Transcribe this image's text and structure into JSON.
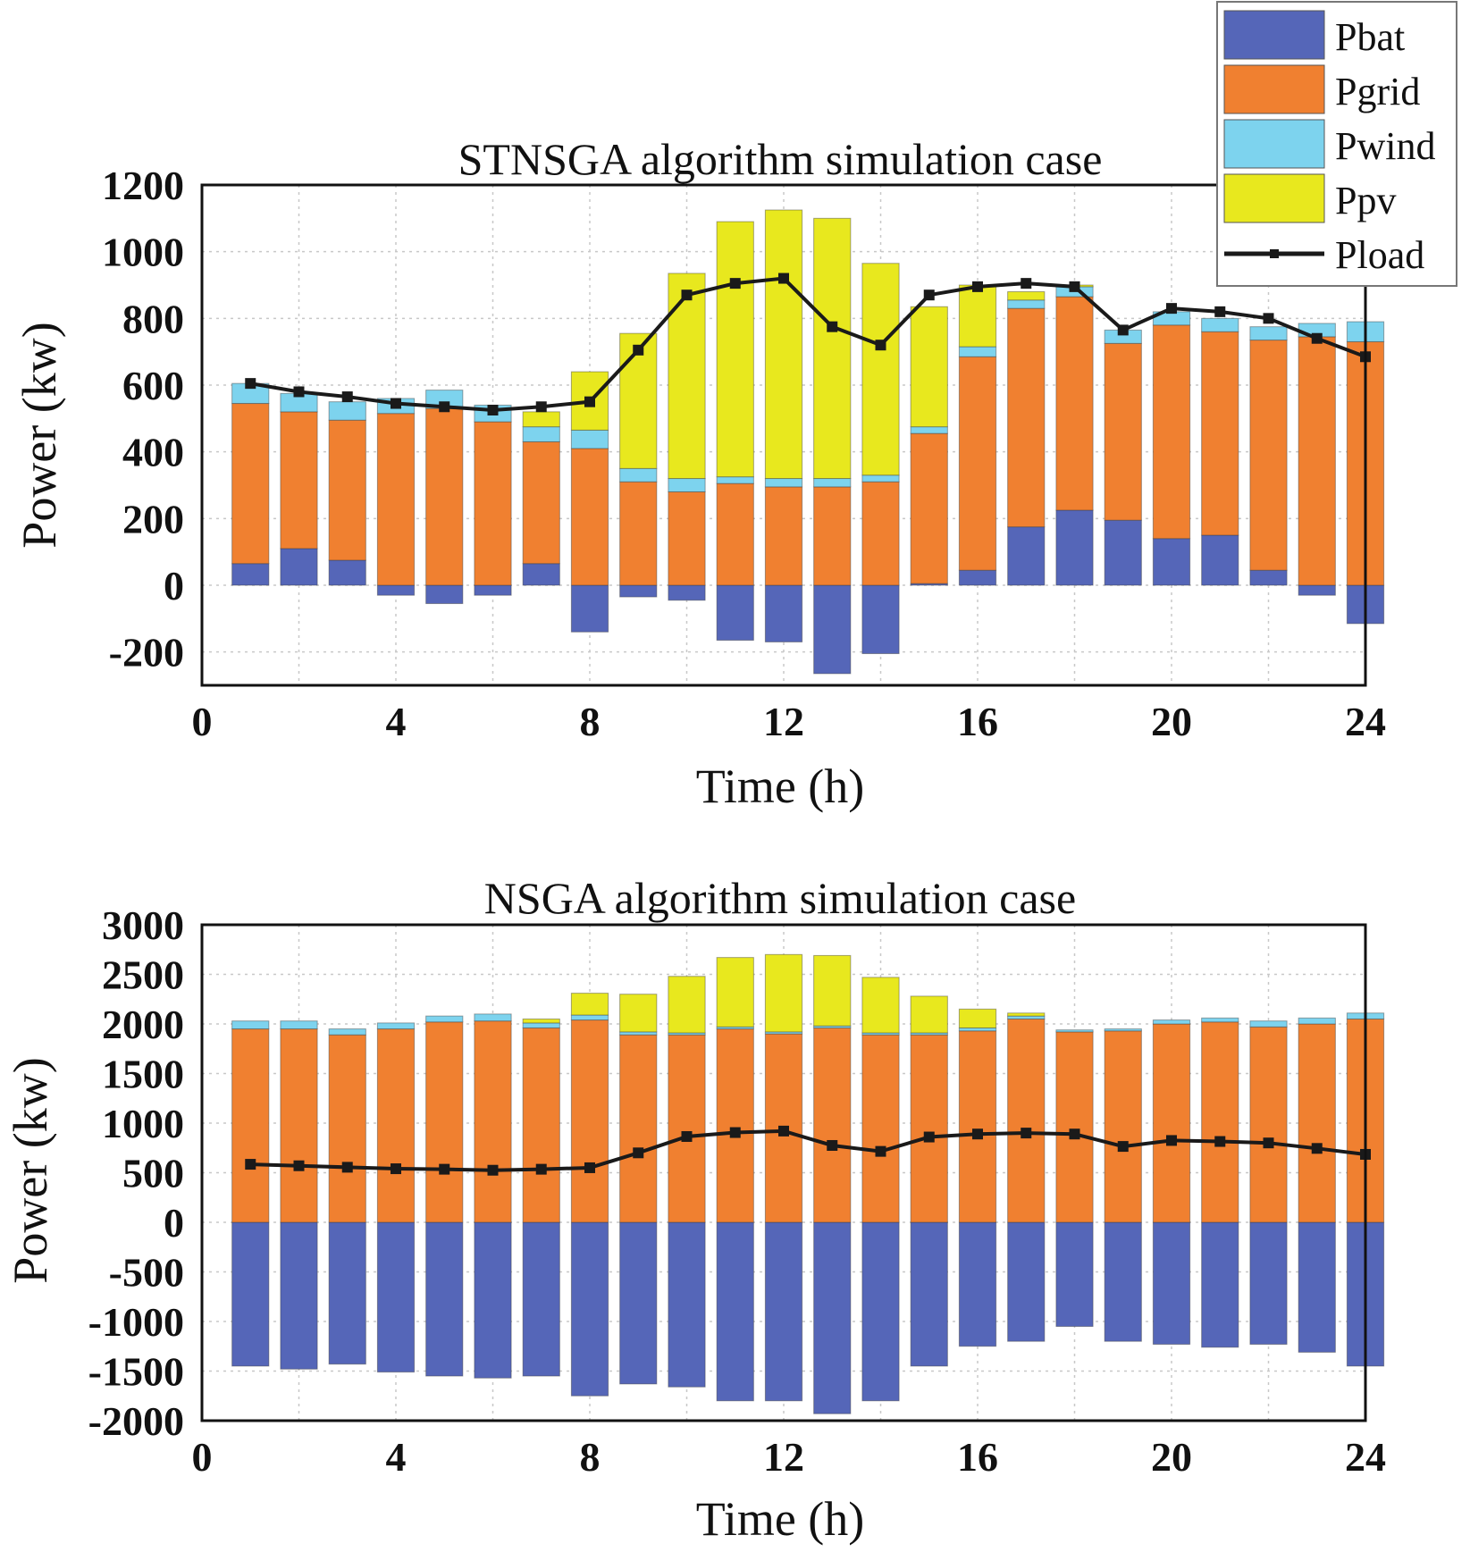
{
  "colors": {
    "Pbat": "#5566b8",
    "Pgrid": "#f08030",
    "Pwind": "#7dd3ee",
    "Ppv": "#e8e81e",
    "Pload": "#1a1a1a"
  },
  "legend": [
    "Pbat",
    "Pgrid",
    "Pwind",
    "Ppv",
    "Pload"
  ],
  "chart_data": [
    {
      "type": "bar",
      "stacked": true,
      "title": "STNSGA algorithm simulation case",
      "xlabel": "Time (h)",
      "ylabel": "Power (kw)",
      "xlim": [
        0,
        24
      ],
      "ylim": [
        -300,
        1200
      ],
      "xticks": [
        0,
        4,
        8,
        12,
        16,
        20,
        24
      ],
      "yticks": [
        -200,
        0,
        200,
        400,
        600,
        800,
        1000,
        1200
      ],
      "grid": true,
      "legend_position": "top-right",
      "x": [
        1,
        2,
        3,
        4,
        5,
        6,
        7,
        8,
        9,
        10,
        11,
        12,
        13,
        14,
        15,
        16,
        17,
        18,
        19,
        20,
        21,
        22,
        23,
        24
      ],
      "series": [
        {
          "name": "Pbat",
          "values": [
            65,
            110,
            75,
            -30,
            -55,
            -30,
            65,
            -140,
            -35,
            -45,
            -165,
            -170,
            -265,
            -205,
            5,
            45,
            175,
            225,
            195,
            140,
            150,
            45,
            -30,
            -115
          ]
        },
        {
          "name": "Pgrid",
          "values": [
            480,
            410,
            420,
            515,
            530,
            490,
            365,
            410,
            310,
            280,
            305,
            295,
            295,
            310,
            450,
            640,
            655,
            640,
            530,
            640,
            610,
            690,
            745,
            730
          ]
        },
        {
          "name": "Pwind",
          "values": [
            60,
            55,
            55,
            45,
            55,
            50,
            45,
            55,
            40,
            40,
            20,
            25,
            25,
            20,
            20,
            30,
            25,
            30,
            40,
            40,
            40,
            40,
            40,
            60
          ]
        },
        {
          "name": "Ppv",
          "values": [
            0,
            0,
            0,
            0,
            0,
            0,
            45,
            175,
            405,
            615,
            765,
            805,
            780,
            635,
            360,
            185,
            25,
            5,
            0,
            0,
            0,
            0,
            0,
            0
          ]
        },
        {
          "name": "Pload",
          "type": "line",
          "values": [
            605,
            580,
            565,
            545,
            535,
            525,
            535,
            550,
            705,
            870,
            905,
            920,
            775,
            720,
            870,
            895,
            905,
            895,
            765,
            830,
            820,
            800,
            740,
            685
          ]
        }
      ]
    },
    {
      "type": "bar",
      "stacked": true,
      "title": "NSGA algorithm simulation case",
      "xlabel": "Time (h)",
      "ylabel": "Power (kw)",
      "xlim": [
        0,
        24
      ],
      "ylim": [
        -2000,
        3000
      ],
      "xticks": [
        0,
        4,
        8,
        12,
        16,
        20,
        24
      ],
      "yticks": [
        -2000,
        -1500,
        -1000,
        -500,
        0,
        500,
        1000,
        1500,
        2000,
        2500,
        3000
      ],
      "grid": true,
      "x": [
        1,
        2,
        3,
        4,
        5,
        6,
        7,
        8,
        9,
        10,
        11,
        12,
        13,
        14,
        15,
        16,
        17,
        18,
        19,
        20,
        21,
        22,
        23,
        24
      ],
      "series": [
        {
          "name": "Pbat",
          "values": [
            -1450,
            -1480,
            -1430,
            -1510,
            -1550,
            -1570,
            -1550,
            -1750,
            -1630,
            -1660,
            -1800,
            -1800,
            -1930,
            -1800,
            -1450,
            -1250,
            -1200,
            -1050,
            -1200,
            -1230,
            -1260,
            -1230,
            -1310,
            -1450
          ]
        },
        {
          "name": "Pgrid",
          "values": [
            1950,
            1950,
            1890,
            1950,
            2020,
            2030,
            1960,
            2040,
            1890,
            1890,
            1950,
            1900,
            1960,
            1890,
            1890,
            1930,
            2050,
            1920,
            1930,
            2000,
            2020,
            1970,
            2000,
            2050
          ]
        },
        {
          "name": "Pwind",
          "values": [
            80,
            80,
            60,
            60,
            60,
            70,
            50,
            50,
            30,
            20,
            20,
            20,
            20,
            20,
            20,
            30,
            30,
            20,
            20,
            40,
            40,
            60,
            60,
            60
          ]
        },
        {
          "name": "Ppv",
          "values": [
            0,
            0,
            0,
            0,
            0,
            0,
            40,
            220,
            380,
            570,
            700,
            780,
            710,
            560,
            370,
            190,
            30,
            0,
            0,
            0,
            0,
            0,
            0,
            0
          ]
        },
        {
          "name": "Pload",
          "type": "line",
          "values": [
            585,
            570,
            555,
            540,
            535,
            525,
            535,
            550,
            700,
            865,
            905,
            920,
            775,
            715,
            860,
            890,
            900,
            890,
            765,
            825,
            815,
            800,
            745,
            685
          ]
        }
      ]
    }
  ]
}
